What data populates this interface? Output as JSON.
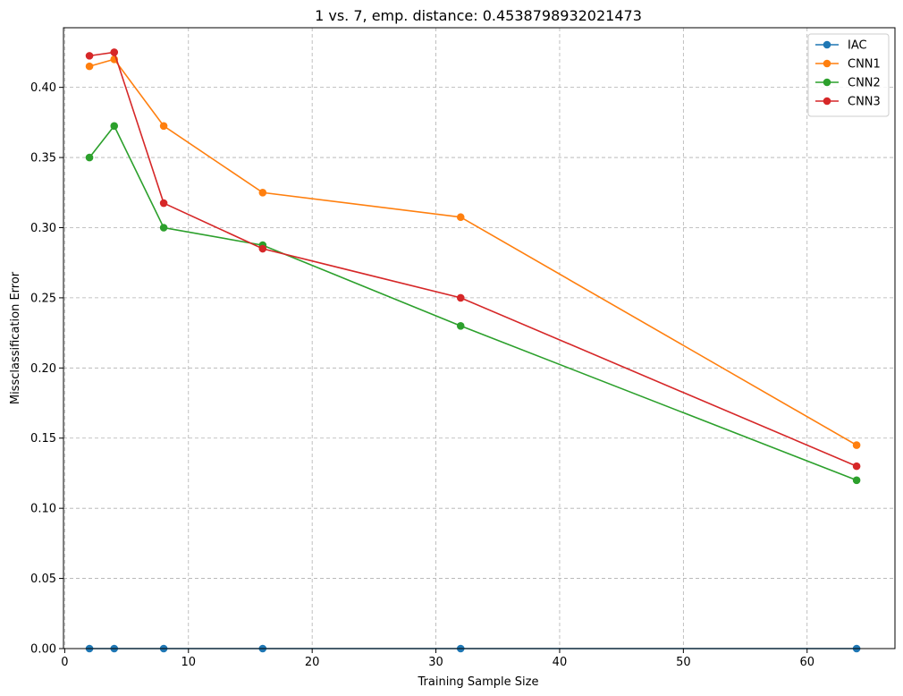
{
  "chart_data": {
    "type": "line",
    "title": "1 vs. 7, emp. distance: 0.4538798932021473",
    "xlabel": "Training Sample Size",
    "ylabel": "Missclassification Error",
    "xlim": [
      -0.1,
      67.1
    ],
    "ylim": [
      0.0,
      0.4425
    ],
    "xticks": [
      0,
      10,
      20,
      30,
      40,
      50,
      60
    ],
    "yticks": [
      0.0,
      0.05,
      0.1,
      0.15,
      0.2,
      0.25,
      0.3,
      0.35,
      0.4
    ],
    "grid": true,
    "legend_position": "top-right",
    "x": [
      2,
      4,
      8,
      16,
      32,
      64
    ],
    "series": [
      {
        "name": "IAC",
        "color": "#1f77b4",
        "values": [
          0.0,
          0.0,
          0.0,
          0.0,
          0.0,
          0.0
        ]
      },
      {
        "name": "CNN1",
        "color": "#ff7f0e",
        "values": [
          0.415,
          0.42,
          0.3725,
          0.325,
          0.3075,
          0.145
        ]
      },
      {
        "name": "CNN2",
        "color": "#2ca02c",
        "values": [
          0.35,
          0.3725,
          0.3,
          0.2875,
          0.23,
          0.12
        ]
      },
      {
        "name": "CNN3",
        "color": "#d62728",
        "values": [
          0.4225,
          0.425,
          0.3175,
          0.285,
          0.25,
          0.13
        ]
      }
    ]
  }
}
